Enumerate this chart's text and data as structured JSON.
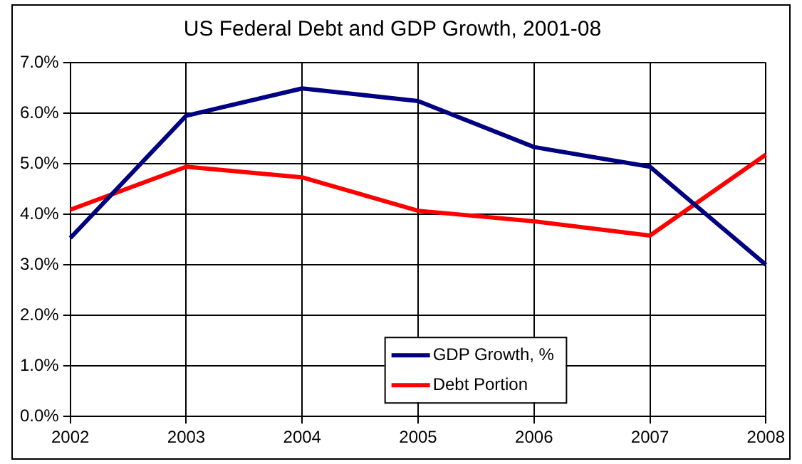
{
  "chart_data": {
    "type": "line",
    "title": "US Federal Debt and GDP Growth, 2001-08",
    "categories": [
      "2002",
      "2003",
      "2004",
      "2005",
      "2006",
      "2007",
      "2008"
    ],
    "series": [
      {
        "name": "GDP Growth, %",
        "color": "#000080",
        "values": [
          3.53,
          5.95,
          6.49,
          6.24,
          5.33,
          4.94,
          3.0
        ]
      },
      {
        "name": "Debt Portion",
        "color": "#ff0000",
        "values": [
          4.09,
          4.94,
          4.73,
          4.07,
          3.86,
          3.58,
          5.18
        ]
      }
    ],
    "ylim": [
      0,
      7
    ],
    "yticks": [
      {
        "value": 0,
        "label": "0.0%"
      },
      {
        "value": 1,
        "label": "1.0%"
      },
      {
        "value": 2,
        "label": "2.0%"
      },
      {
        "value": 3,
        "label": "3.0%"
      },
      {
        "value": 4,
        "label": "4.0%"
      },
      {
        "value": 5,
        "label": "5.0%"
      },
      {
        "value": 6,
        "label": "6.0%"
      },
      {
        "value": 7,
        "label": "7.0%"
      }
    ],
    "grid": true,
    "legend": "bottom",
    "marker": "none",
    "line_style": "solid"
  }
}
